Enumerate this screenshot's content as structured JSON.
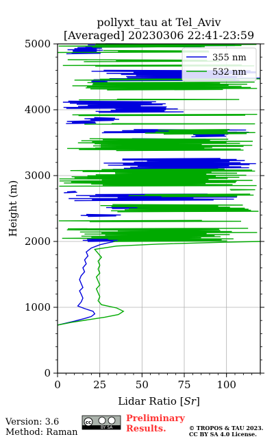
{
  "chart_data": {
    "type": "line",
    "title_line1": "pollyxt_tau at Tel_Aviv",
    "title_line2": "[Averaged] 20230306 22:41-23:59",
    "xlabel": "Lidar Ratio [",
    "xlabel_math": "Sr",
    "xlabel_end": "]",
    "ylabel": "Height (m)",
    "xlim": [
      0,
      120
    ],
    "ylim": [
      0,
      5000
    ],
    "x_ticks": [
      0,
      25,
      50,
      75,
      100
    ],
    "y_ticks": [
      0,
      1000,
      2000,
      3000,
      4000,
      5000
    ],
    "grid": true,
    "legend_position": "top-right",
    "series": [
      {
        "name": "355 nm",
        "color": "#0000dd",
        "points": [
          [
            0,
            730
          ],
          [
            5,
            760
          ],
          [
            10,
            790
          ],
          [
            16,
            830
          ],
          [
            20,
            860
          ],
          [
            22,
            900
          ],
          [
            21,
            940
          ],
          [
            16,
            980
          ],
          [
            12,
            1020
          ],
          [
            14,
            1080
          ],
          [
            15,
            1140
          ],
          [
            14,
            1200
          ],
          [
            13,
            1250
          ],
          [
            15,
            1300
          ],
          [
            14,
            1360
          ],
          [
            13,
            1420
          ],
          [
            14,
            1480
          ],
          [
            16,
            1540
          ],
          [
            15,
            1600
          ],
          [
            17,
            1660
          ],
          [
            16,
            1720
          ],
          [
            18,
            1780
          ],
          [
            17,
            1840
          ],
          [
            20,
            1900
          ],
          [
            25,
            1950
          ],
          [
            30,
            1980
          ],
          [
            34,
            2000
          ]
        ],
        "noise_bands": [
          [
            2000,
            2050,
            14,
            40
          ],
          [
            2380,
            2410,
            10,
            40
          ],
          [
            2500,
            2530,
            18,
            90
          ],
          [
            2620,
            2720,
            5,
            110
          ],
          [
            2740,
            2760,
            3,
            12
          ],
          [
            2940,
            2990,
            50,
            85
          ],
          [
            3080,
            3260,
            26,
            120
          ],
          [
            3510,
            3560,
            40,
            90
          ],
          [
            3590,
            3660,
            70,
            110
          ],
          [
            3650,
            3700,
            15,
            120
          ],
          [
            3790,
            3830,
            5,
            25
          ],
          [
            3830,
            3880,
            15,
            40
          ],
          [
            3960,
            4020,
            20,
            75
          ],
          [
            4020,
            4130,
            2,
            65
          ],
          [
            4400,
            4440,
            20,
            30
          ],
          [
            4440,
            4600,
            18,
            120
          ],
          [
            4850,
            4950,
            5,
            30
          ],
          [
            4950,
            5000,
            0,
            120
          ]
        ]
      },
      {
        "name": "532 nm",
        "color": "#00aa00",
        "points": [
          [
            0,
            730
          ],
          [
            8,
            770
          ],
          [
            18,
            810
          ],
          [
            28,
            850
          ],
          [
            36,
            890
          ],
          [
            39,
            940
          ],
          [
            35,
            990
          ],
          [
            26,
            1040
          ],
          [
            24,
            1100
          ],
          [
            25,
            1160
          ],
          [
            24,
            1220
          ],
          [
            23,
            1280
          ],
          [
            25,
            1340
          ],
          [
            24,
            1400
          ],
          [
            23,
            1460
          ],
          [
            25,
            1520
          ],
          [
            24,
            1580
          ],
          [
            25,
            1640
          ],
          [
            24,
            1700
          ],
          [
            26,
            1760
          ],
          [
            24,
            1820
          ],
          [
            22,
            1880
          ],
          [
            35,
            1930
          ],
          [
            60,
            1960
          ],
          [
            100,
            1990
          ],
          [
            120,
            2000
          ]
        ],
        "noise_bands": [
          [
            2000,
            2200,
            0,
            120
          ],
          [
            2300,
            2320,
            0,
            120
          ],
          [
            2450,
            2560,
            20,
            120
          ],
          [
            2680,
            2720,
            40,
            120
          ],
          [
            2780,
            2790,
            100,
            120
          ],
          [
            2840,
            3100,
            0,
            120
          ],
          [
            3380,
            3420,
            0,
            120
          ],
          [
            3420,
            3560,
            0,
            120
          ],
          [
            3630,
            3700,
            50,
            120
          ],
          [
            3780,
            3790,
            0,
            120
          ],
          [
            3910,
            3930,
            0,
            120
          ],
          [
            4150,
            4160,
            0,
            120
          ],
          [
            4300,
            4420,
            0,
            120
          ],
          [
            4450,
            4470,
            10,
            120
          ],
          [
            4660,
            4680,
            0,
            120
          ],
          [
            4730,
            4760,
            0,
            120
          ],
          [
            4870,
            4900,
            0,
            120
          ],
          [
            4950,
            5000,
            0,
            120
          ]
        ]
      }
    ]
  },
  "footer": {
    "version": "Version: 3.6",
    "method": "Method: Raman",
    "cc_badge": "cc-by-sa-icon",
    "cc_text": "BY   SA",
    "preliminary_line1": "Preliminary",
    "preliminary_line2": "Results.",
    "license_line1": "© TROPOS & TAU 2023.",
    "license_line2": "CC BY SA 4.0 License."
  }
}
